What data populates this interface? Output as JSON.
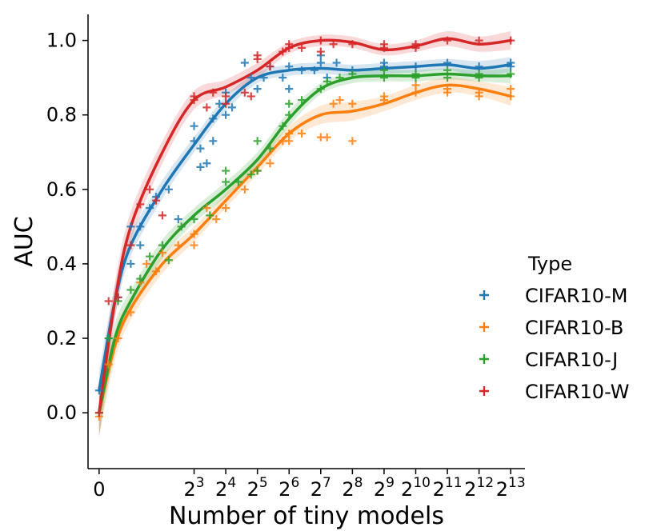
{
  "chart_data": {
    "type": "scatter",
    "xlabel": "Number of tiny models",
    "ylabel": "AUC",
    "x_scale": "log2",
    "xlim": [
      -0.35,
      13.45
    ],
    "ylim": [
      -0.15,
      1.07
    ],
    "x_ticks": [
      {
        "value": 0,
        "base": "0",
        "exp": ""
      },
      {
        "value": 3,
        "base": "2",
        "exp": "3"
      },
      {
        "value": 4,
        "base": "2",
        "exp": "4"
      },
      {
        "value": 5,
        "base": "2",
        "exp": "5"
      },
      {
        "value": 6,
        "base": "2",
        "exp": "6"
      },
      {
        "value": 7,
        "base": "2",
        "exp": "7"
      },
      {
        "value": 8,
        "base": "2",
        "exp": "8"
      },
      {
        "value": 9,
        "base": "2",
        "exp": "9"
      },
      {
        "value": 10,
        "base": "2",
        "exp": "10"
      },
      {
        "value": 11,
        "base": "2",
        "exp": "11"
      },
      {
        "value": 12,
        "base": "2",
        "exp": "12"
      },
      {
        "value": 13,
        "base": "2",
        "exp": "13"
      }
    ],
    "y_ticks": [
      "0.0",
      "0.2",
      "0.4",
      "0.6",
      "0.8",
      "1.0"
    ],
    "y_tick_values": [
      0.0,
      0.2,
      0.4,
      0.6,
      0.8,
      1.0
    ],
    "legend_title": "Type",
    "legend_position": "right",
    "series": [
      {
        "name": "CIFAR10-M",
        "color": "#1f77b4",
        "points": [
          [
            0,
            0.06
          ],
          [
            0.3,
            0.2
          ],
          [
            0.6,
            0.31
          ],
          [
            1,
            0.4
          ],
          [
            1,
            0.5
          ],
          [
            1.3,
            0.45
          ],
          [
            1.3,
            0.5
          ],
          [
            1.6,
            0.55
          ],
          [
            1.8,
            0.58
          ],
          [
            2.2,
            0.6
          ],
          [
            2.5,
            0.52
          ],
          [
            3,
            0.73
          ],
          [
            3,
            0.77
          ],
          [
            3.2,
            0.66
          ],
          [
            3.2,
            0.71
          ],
          [
            3.4,
            0.67
          ],
          [
            3.6,
            0.73
          ],
          [
            3.6,
            0.79
          ],
          [
            3.8,
            0.83
          ],
          [
            4,
            0.8
          ],
          [
            4,
            0.86
          ],
          [
            4.2,
            0.82
          ],
          [
            4.6,
            0.94
          ],
          [
            4.8,
            0.9
          ],
          [
            5,
            0.87
          ],
          [
            5.2,
            0.9
          ],
          [
            5.4,
            0.93
          ],
          [
            5.8,
            0.9
          ],
          [
            6,
            0.87
          ],
          [
            6,
            0.93
          ],
          [
            6.4,
            0.92
          ],
          [
            6.8,
            0.92
          ],
          [
            7,
            0.96
          ],
          [
            7,
            0.94
          ],
          [
            7.2,
            0.9
          ],
          [
            7.5,
            0.94
          ],
          [
            8,
            0.92
          ],
          [
            9,
            0.93
          ],
          [
            9,
            0.94
          ],
          [
            10,
            0.93
          ],
          [
            11,
            0.94
          ],
          [
            12,
            0.93
          ],
          [
            13,
            0.94
          ],
          [
            13,
            0.93
          ]
        ],
        "fit": [
          [
            0,
            0.06
          ],
          [
            0.5,
            0.3
          ],
          [
            1,
            0.45
          ],
          [
            2,
            0.6
          ],
          [
            3,
            0.72
          ],
          [
            4,
            0.83
          ],
          [
            5,
            0.9
          ],
          [
            6,
            0.92
          ],
          [
            7,
            0.925
          ],
          [
            8,
            0.92
          ],
          [
            9,
            0.925
          ],
          [
            10,
            0.93
          ],
          [
            11,
            0.935
          ],
          [
            12,
            0.925
          ],
          [
            13,
            0.935
          ]
        ],
        "band": [
          0.05,
          0.04,
          0.03,
          0.025,
          0.02,
          0.02,
          0.015,
          0.015,
          0.015,
          0.015,
          0.015,
          0.015,
          0.015,
          0.02,
          0.02
        ]
      },
      {
        "name": "CIFAR10-B",
        "color": "#ff7f0e",
        "points": [
          [
            0,
            -0.01
          ],
          [
            0.3,
            0.13
          ],
          [
            0.6,
            0.2
          ],
          [
            1,
            0.27
          ],
          [
            1.3,
            0.35
          ],
          [
            1.5,
            0.4
          ],
          [
            1.8,
            0.38
          ],
          [
            2,
            0.43
          ],
          [
            2.5,
            0.45
          ],
          [
            3,
            0.45
          ],
          [
            3,
            0.48
          ],
          [
            3.4,
            0.55
          ],
          [
            3.7,
            0.52
          ],
          [
            4,
            0.55
          ],
          [
            4.6,
            0.6
          ],
          [
            5,
            0.65
          ],
          [
            5.4,
            0.67
          ],
          [
            5.8,
            0.73
          ],
          [
            6,
            0.73
          ],
          [
            6,
            0.75
          ],
          [
            6.4,
            0.75
          ],
          [
            7,
            0.74
          ],
          [
            7.2,
            0.74
          ],
          [
            7.4,
            0.83
          ],
          [
            7.6,
            0.84
          ],
          [
            8,
            0.83
          ],
          [
            8,
            0.73
          ],
          [
            9,
            0.84
          ],
          [
            9,
            0.85
          ],
          [
            10,
            0.86
          ],
          [
            10,
            0.88
          ],
          [
            11,
            0.86
          ],
          [
            11,
            0.87
          ],
          [
            12,
            0.86
          ],
          [
            12,
            0.85
          ],
          [
            13,
            0.85
          ],
          [
            13,
            0.87
          ]
        ],
        "fit": [
          [
            0,
            0
          ],
          [
            0.5,
            0.18
          ],
          [
            1,
            0.28
          ],
          [
            2,
            0.4
          ],
          [
            3,
            0.48
          ],
          [
            4,
            0.57
          ],
          [
            5,
            0.66
          ],
          [
            6,
            0.75
          ],
          [
            7,
            0.8
          ],
          [
            8,
            0.81
          ],
          [
            9,
            0.83
          ],
          [
            10,
            0.86
          ],
          [
            11,
            0.88
          ],
          [
            12,
            0.87
          ],
          [
            13,
            0.85
          ]
        ],
        "band": [
          0.06,
          0.04,
          0.03,
          0.025,
          0.02,
          0.02,
          0.02,
          0.02,
          0.025,
          0.025,
          0.02,
          0.02,
          0.02,
          0.02,
          0.025
        ]
      },
      {
        "name": "CIFAR10-J",
        "color": "#2ca02c",
        "points": [
          [
            0,
            0
          ],
          [
            0.3,
            0.2
          ],
          [
            0.6,
            0.3
          ],
          [
            1,
            0.33
          ],
          [
            1.3,
            0.36
          ],
          [
            1.6,
            0.42
          ],
          [
            2,
            0.45
          ],
          [
            2.2,
            0.41
          ],
          [
            2.6,
            0.5
          ],
          [
            3,
            0.52
          ],
          [
            3.5,
            0.53
          ],
          [
            4,
            0.62
          ],
          [
            4,
            0.65
          ],
          [
            4.4,
            0.62
          ],
          [
            4.8,
            0.64
          ],
          [
            5,
            0.65
          ],
          [
            5,
            0.73
          ],
          [
            5.4,
            0.71
          ],
          [
            5.8,
            0.77
          ],
          [
            6,
            0.8
          ],
          [
            6,
            0.83
          ],
          [
            6.4,
            0.84
          ],
          [
            7,
            0.87
          ],
          [
            7.2,
            0.89
          ],
          [
            7.6,
            0.9
          ],
          [
            8,
            0.91
          ],
          [
            9,
            0.9
          ],
          [
            9,
            0.92
          ],
          [
            10,
            0.9
          ],
          [
            10,
            0.91
          ],
          [
            11,
            0.92
          ],
          [
            11,
            0.9
          ],
          [
            12,
            0.9
          ],
          [
            12,
            0.91
          ],
          [
            13,
            0.91
          ]
        ],
        "fit": [
          [
            0,
            0
          ],
          [
            0.5,
            0.2
          ],
          [
            1,
            0.3
          ],
          [
            2,
            0.44
          ],
          [
            3,
            0.53
          ],
          [
            4,
            0.6
          ],
          [
            5,
            0.68
          ],
          [
            6,
            0.79
          ],
          [
            7,
            0.87
          ],
          [
            8,
            0.9
          ],
          [
            9,
            0.905
          ],
          [
            10,
            0.905
          ],
          [
            11,
            0.91
          ],
          [
            12,
            0.905
          ],
          [
            13,
            0.905
          ]
        ],
        "band": [
          0.06,
          0.04,
          0.03,
          0.025,
          0.02,
          0.02,
          0.02,
          0.02,
          0.015,
          0.015,
          0.015,
          0.015,
          0.015,
          0.015,
          0.02
        ]
      },
      {
        "name": "CIFAR10-W",
        "color": "#d62728",
        "points": [
          [
            0,
            0
          ],
          [
            0.3,
            0.3
          ],
          [
            0.6,
            0.31
          ],
          [
            1,
            0.45
          ],
          [
            1.3,
            0.56
          ],
          [
            1.6,
            0.6
          ],
          [
            1.8,
            0.57
          ],
          [
            2,
            0.53
          ],
          [
            3,
            0.84
          ],
          [
            3,
            0.85
          ],
          [
            3.4,
            0.82
          ],
          [
            3.6,
            0.86
          ],
          [
            4,
            0.85
          ],
          [
            4,
            0.83
          ],
          [
            4.6,
            0.86
          ],
          [
            4.8,
            0.85
          ],
          [
            5,
            0.95
          ],
          [
            5,
            0.96
          ],
          [
            5.4,
            0.93
          ],
          [
            5.8,
            0.97
          ],
          [
            6,
            0.98
          ],
          [
            6,
            0.99
          ],
          [
            6.4,
            0.98
          ],
          [
            7,
            1.0
          ],
          [
            7,
            0.97
          ],
          [
            7.4,
            0.99
          ],
          [
            8,
            0.99
          ],
          [
            9,
            0.98
          ],
          [
            9,
            0.99
          ],
          [
            10,
            0.98
          ],
          [
            10,
            0.99
          ],
          [
            11,
            1.0
          ],
          [
            12,
            1.0
          ],
          [
            13,
            1.0
          ]
        ],
        "fit": [
          [
            0,
            0
          ],
          [
            0.5,
            0.3
          ],
          [
            1,
            0.5
          ],
          [
            2,
            0.7
          ],
          [
            3,
            0.84
          ],
          [
            4,
            0.875
          ],
          [
            5,
            0.92
          ],
          [
            6,
            0.98
          ],
          [
            7,
            1.0
          ],
          [
            8,
            0.995
          ],
          [
            9,
            0.975
          ],
          [
            10,
            0.985
          ],
          [
            11,
            1.005
          ],
          [
            12,
            0.99
          ],
          [
            13,
            1.0
          ]
        ],
        "band": [
          0.07,
          0.05,
          0.04,
          0.03,
          0.025,
          0.02,
          0.02,
          0.015,
          0.015,
          0.015,
          0.015,
          0.015,
          0.02,
          0.02,
          0.025
        ]
      }
    ]
  }
}
